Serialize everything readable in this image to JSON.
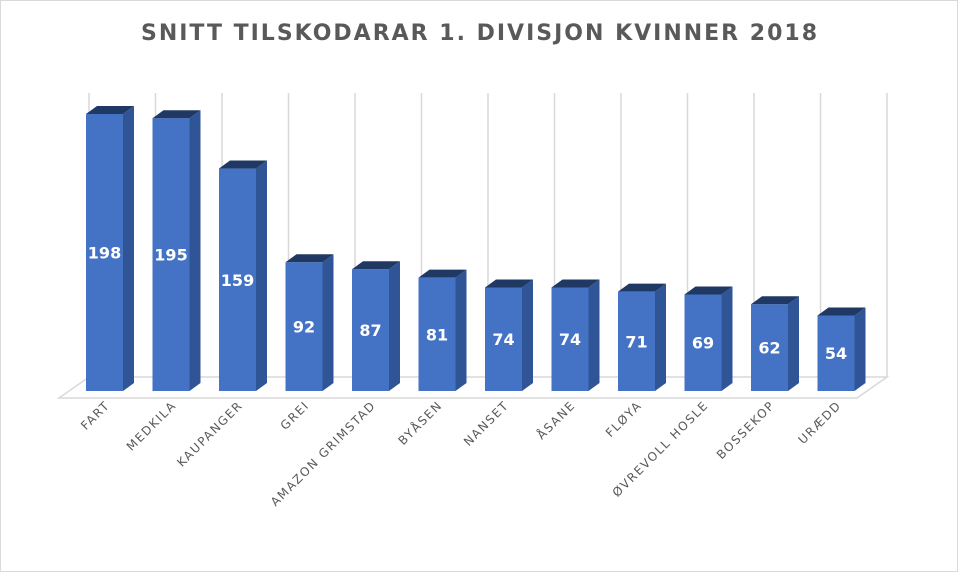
{
  "chart_data": {
    "type": "bar",
    "title": "SNITT TILSKODARAR 1. DIVISJON KVINNER 2018",
    "categories": [
      "FART",
      "MEDKILA",
      "KAUPANGER",
      "GREI",
      "AMAZON GRIMSTAD",
      "BYÅSEN",
      "NANSET",
      "ÅSANE",
      "FLØYA",
      "ØVREVOLL HOSLE",
      "BOSSEKOP",
      "URÆDD"
    ],
    "values": [
      198,
      195,
      159,
      92,
      87,
      81,
      74,
      74,
      71,
      69,
      62,
      54
    ],
    "ylim": [
      0,
      210
    ],
    "grid": true,
    "legend": "none",
    "colors": {
      "front": "#4472c4",
      "side": "#2f5597",
      "top": "#203864",
      "grid": "#d9d9d9"
    }
  }
}
